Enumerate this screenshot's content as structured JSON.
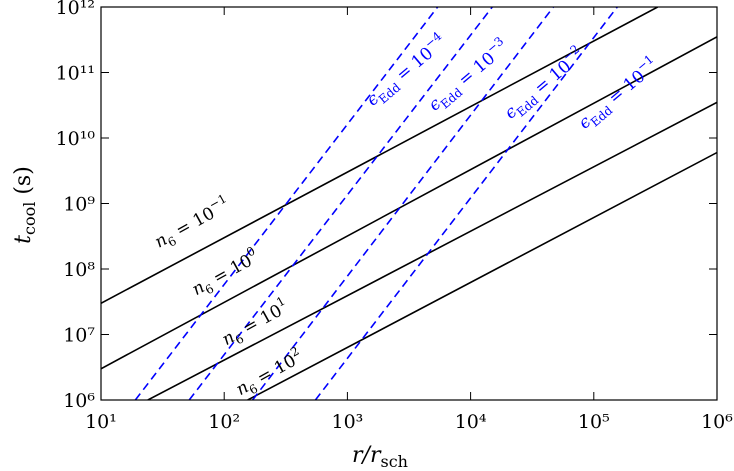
{
  "chart_data": {
    "type": "line",
    "xlabel": {
      "main": "r/r",
      "sub": "sch"
    },
    "ylabel": {
      "main": "t",
      "sub": "cool",
      "unit": " (s)"
    },
    "xscale": "log",
    "yscale": "log",
    "xlim": [
      10,
      1000000
    ],
    "ylim": [
      1000000,
      1000000000000
    ],
    "xticks": [
      {
        "value": 10,
        "label": "10¹"
      },
      {
        "value": 100,
        "label": "10²"
      },
      {
        "value": 1000,
        "label": "10³"
      },
      {
        "value": 10000,
        "label": "10⁴"
      },
      {
        "value": 100000,
        "label": "10⁵"
      },
      {
        "value": 1000000,
        "label": "10⁶"
      }
    ],
    "yticks": [
      {
        "value": 1000000,
        "label": "10⁶"
      },
      {
        "value": 10000000,
        "label": "10⁷"
      },
      {
        "value": 100000000,
        "label": "10⁸"
      },
      {
        "value": 1000000000,
        "label": "10⁹"
      },
      {
        "value": 10000000000,
        "label": "10¹⁰"
      },
      {
        "value": 100000000000,
        "label": "10¹¹"
      },
      {
        "value": 1000000000000,
        "label": "10¹²"
      }
    ],
    "series": [
      {
        "label": {
          "base": "n",
          "sub": "6",
          "text": " = 10",
          "sup": "−1"
        },
        "color": "#000000",
        "linestyle": "solid",
        "x": [
          10,
          330000
        ],
        "y": [
          30000000,
          1000000000000
        ]
      },
      {
        "label": {
          "base": "n",
          "sub": "6",
          "text": " = 10",
          "sup": "0"
        },
        "color": "#000000",
        "linestyle": "solid",
        "x": [
          10,
          1000000
        ],
        "y": [
          3000000,
          350000000000
        ]
      },
      {
        "label": {
          "base": "n",
          "sub": "6",
          "text": " = 10",
          "sup": "1"
        },
        "color": "#000000",
        "linestyle": "solid",
        "x": [
          24,
          1000000
        ],
        "y": [
          1000000,
          35000000000
        ]
      },
      {
        "label": {
          "base": "n",
          "sub": "6",
          "text": " = 10",
          "sup": "2"
        },
        "color": "#000000",
        "linestyle": "solid",
        "x": [
          155,
          1000000
        ],
        "y": [
          1000000,
          6000000000
        ]
      },
      {
        "label": {
          "base": "ϵ",
          "sub": "Edd",
          "text": " = 10",
          "sup": "−4"
        },
        "color": "#0000ff",
        "linestyle": "dashed",
        "x": [
          19,
          5400
        ],
        "y": [
          1000000,
          1000000000000
        ]
      },
      {
        "label": {
          "base": "ϵ",
          "sub": "Edd",
          "text": " = 10",
          "sup": "−3"
        },
        "color": "#0000ff",
        "linestyle": "dashed",
        "x": [
          52,
          15000
        ],
        "y": [
          1000000,
          1000000000000
        ]
      },
      {
        "label": {
          "base": "ϵ",
          "sub": "Edd",
          "text": " = 10",
          "sup": "−2"
        },
        "color": "#0000ff",
        "linestyle": "dashed",
        "x": [
          170,
          47000
        ],
        "y": [
          1000000,
          1000000000000
        ]
      },
      {
        "label": {
          "base": "ϵ",
          "sub": "Edd",
          "text": " = 10",
          "sup": "−1"
        },
        "color": "#0000ff",
        "linestyle": "dashed",
        "x": [
          550,
          155000
        ],
        "y": [
          1000000,
          1000000000000
        ]
      }
    ]
  }
}
